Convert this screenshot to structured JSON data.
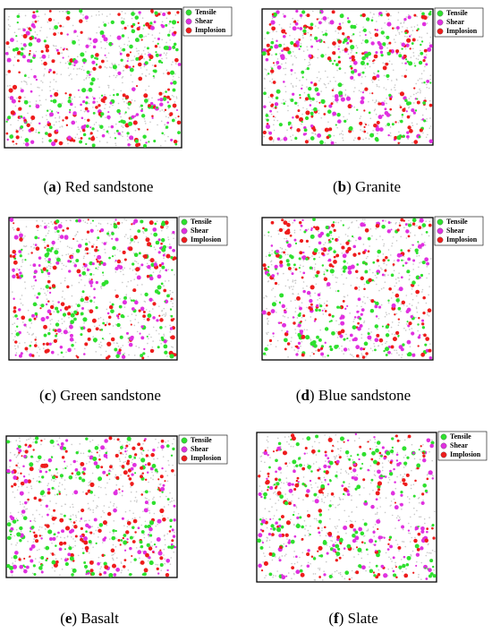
{
  "legend": [
    {
      "label": "Tensile",
      "color": "#2ee02e"
    },
    {
      "label": "Shear",
      "color": "#e030e0"
    },
    {
      "label": "Implosion",
      "color": "#ee1c1c"
    }
  ],
  "panels": [
    {
      "caption": {
        "open": "(",
        "letter": "a",
        "rest": ") Red sandstone"
      }
    },
    {
      "caption": {
        "open": "(",
        "letter": "b",
        "rest": ") Granite"
      }
    },
    {
      "caption": {
        "open": "(",
        "letter": "c",
        "rest": ") Green sandstone"
      }
    },
    {
      "caption": {
        "open": "(",
        "letter": "d",
        "rest": ") Blue sandstone"
      }
    },
    {
      "caption": {
        "open": "(",
        "letter": "e",
        "rest": ") Basalt"
      }
    },
    {
      "caption": {
        "open": "(",
        "letter": "f",
        "rest": ") Slate"
      }
    }
  ]
}
